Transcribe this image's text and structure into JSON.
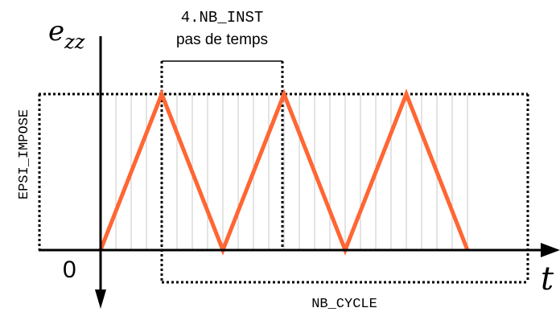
{
  "axes": {
    "y_label_main": "e",
    "y_label_sub": "zz",
    "x_label": "t",
    "origin_label": "0"
  },
  "annotations": {
    "period_code": "4.NB_INST",
    "period_text": "pas de temps",
    "amplitude": "EPSI_IMPOSE",
    "cycles": "NB_CYCLE"
  },
  "signal": {
    "shape": "triangle",
    "cycles_shown": 3,
    "half_period_steps": 4,
    "color": "#ff6633"
  },
  "colors": {
    "axis": "#000000",
    "grid": "#c8c8c8",
    "dotted": "#000000",
    "signal": "#ff6633"
  }
}
